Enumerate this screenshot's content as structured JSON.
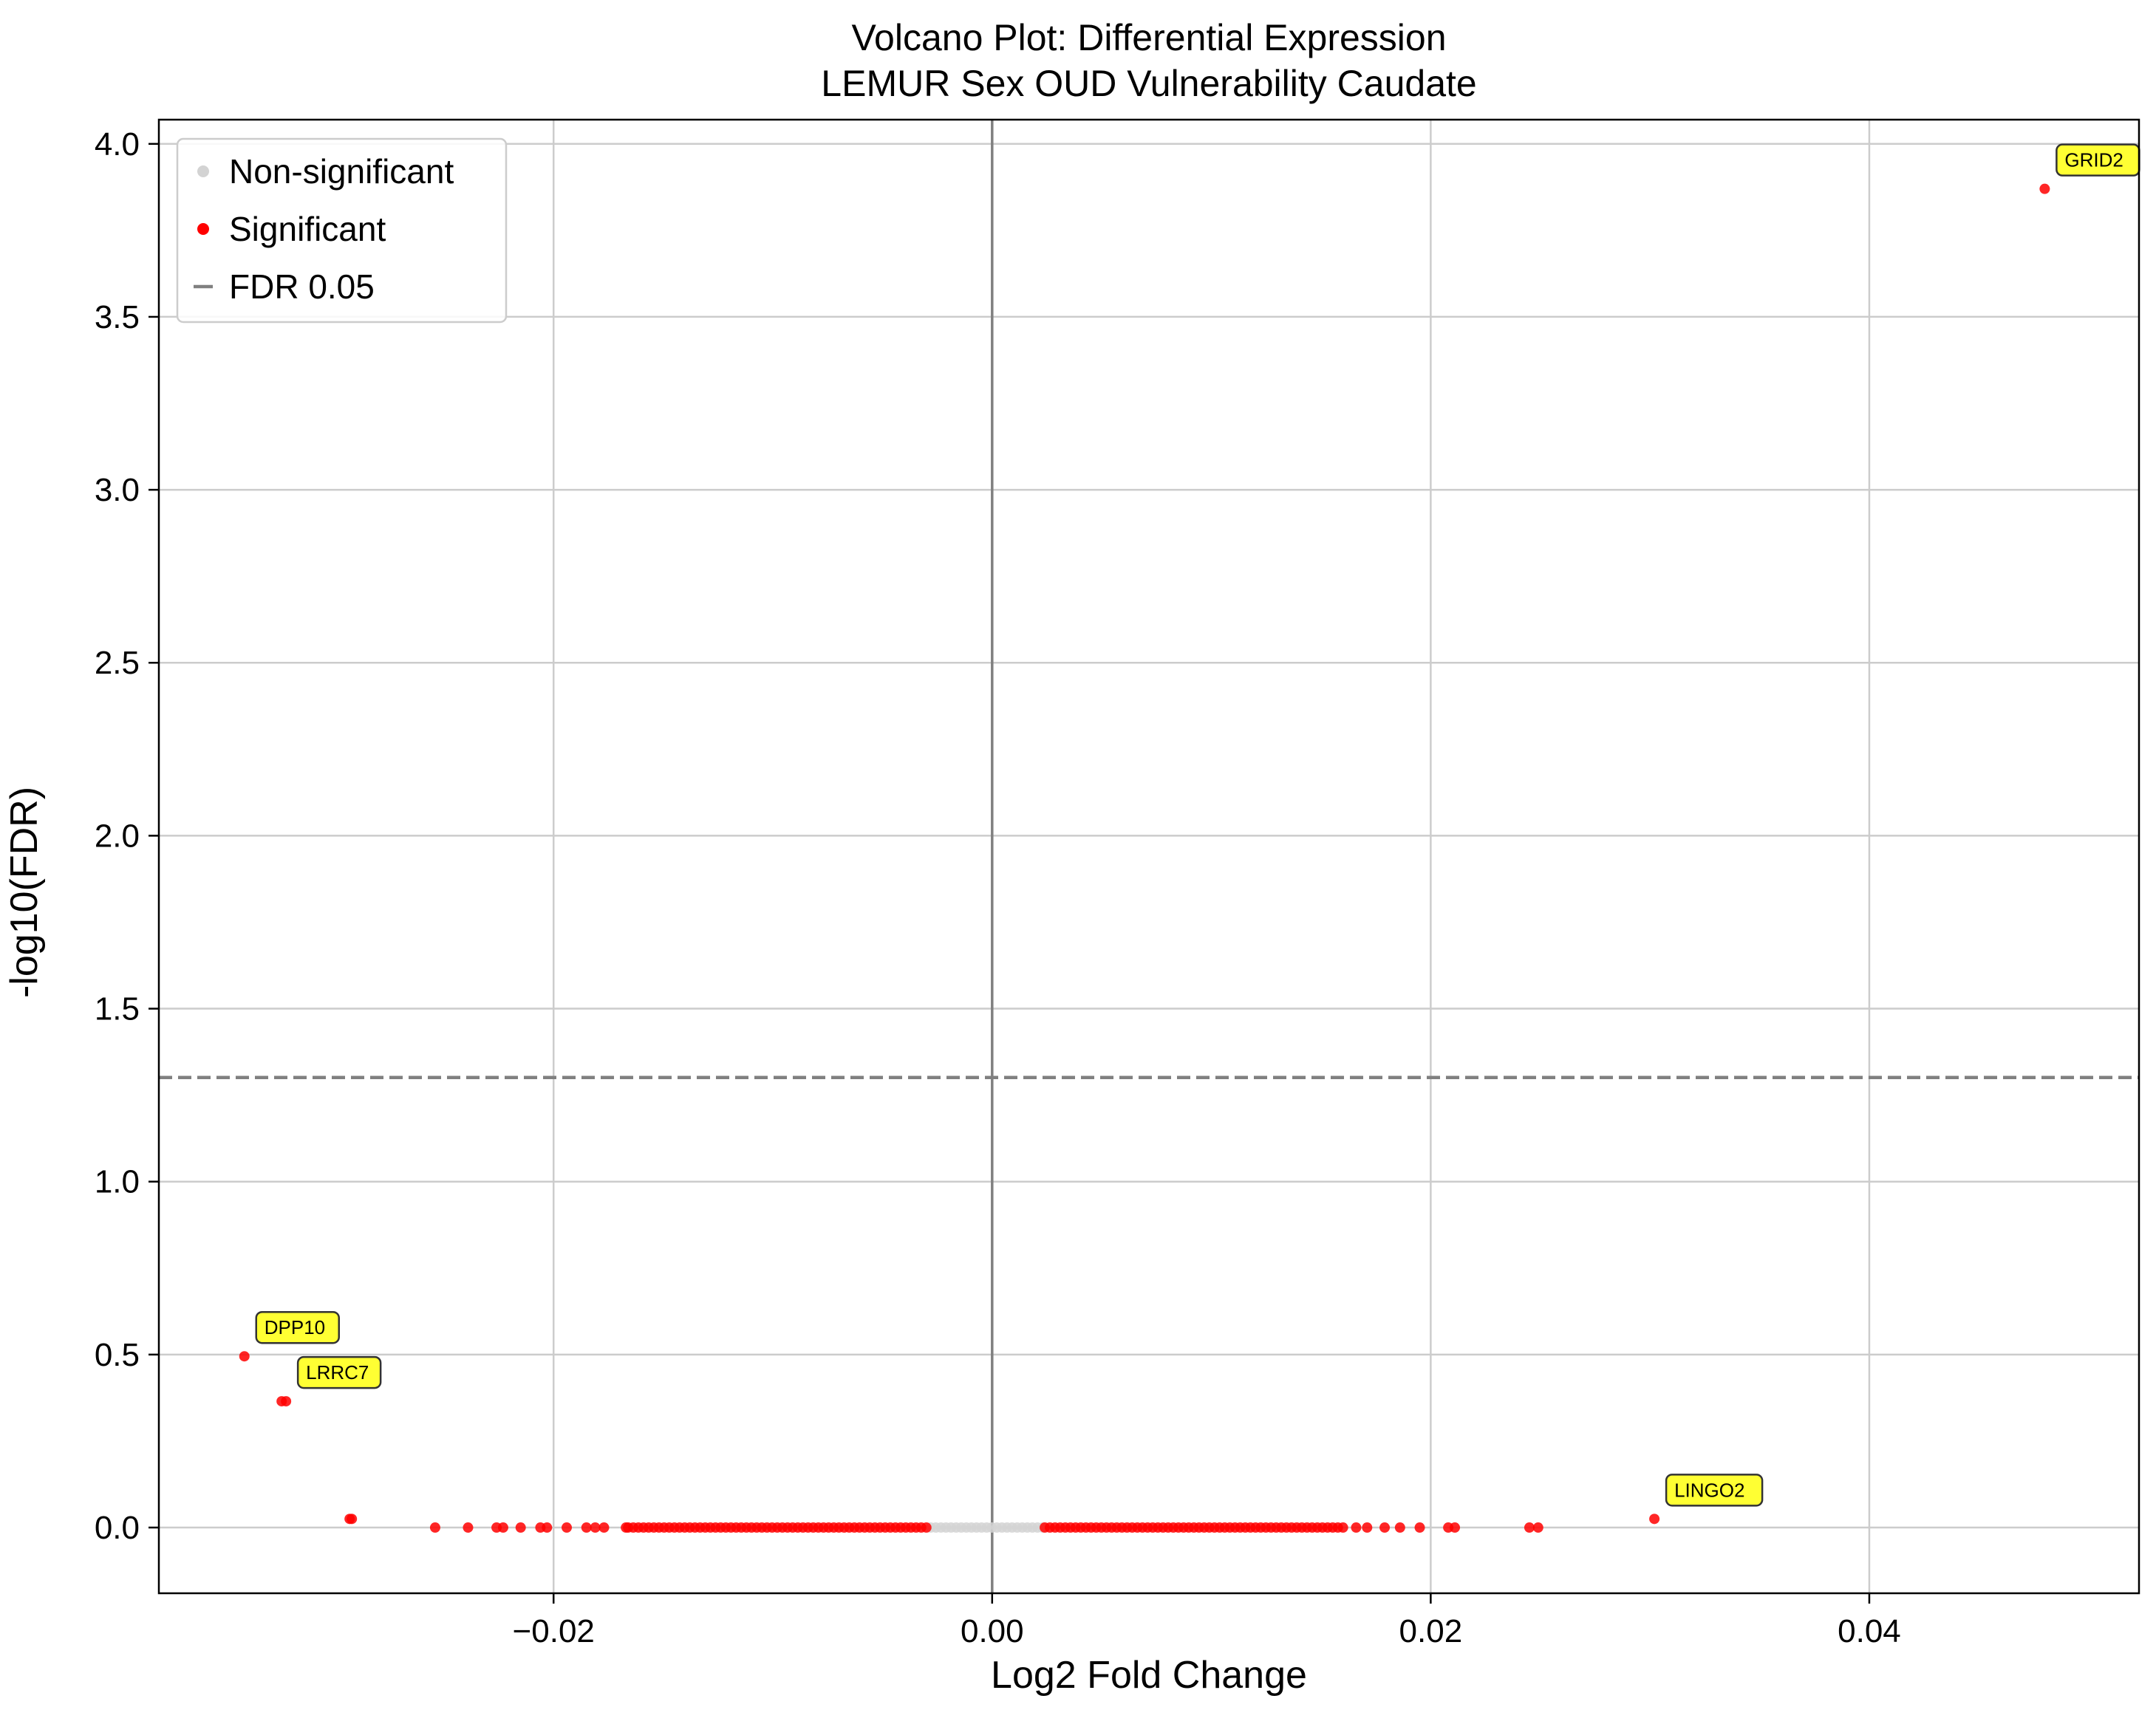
{
  "chart_data": {
    "type": "scatter",
    "title": "Volcano Plot: Differential Expression",
    "subtitle": "LEMUR Sex OUD Vulnerability Caudate",
    "xlabel": "Log2 Fold Change",
    "ylabel": "-log10(FDR)",
    "xlim": [
      -0.038,
      0.0523
    ],
    "ylim": [
      -0.19,
      4.07
    ],
    "x_ticks": [
      -0.02,
      0.0,
      0.02,
      0.04
    ],
    "x_tick_labels": [
      "−0.02",
      "0.00",
      "0.02",
      "0.04"
    ],
    "y_ticks": [
      0.0,
      0.5,
      1.0,
      1.5,
      2.0,
      2.5,
      3.0,
      3.5,
      4.0
    ],
    "y_tick_labels": [
      "0.0",
      "0.5",
      "1.0",
      "1.5",
      "2.0",
      "2.5",
      "3.0",
      "3.5",
      "4.0"
    ],
    "grid": true,
    "legend_position": "top-left",
    "threshold_line": {
      "y": 1.301,
      "label": "FDR 0.05",
      "color": "#808080"
    },
    "zero_line": {
      "x": 0.0,
      "color": "#808080"
    },
    "series": [
      {
        "name": "Non-significant",
        "color": "#d3d3d3",
        "y_constant": 0.0,
        "x_ranges": [
          [
            -0.0028,
            0.0023
          ]
        ]
      },
      {
        "name": "Significant",
        "color": "#ff0000",
        "points": [
          {
            "x": 0.048,
            "y": 3.87
          },
          {
            "x": -0.0341,
            "y": 0.495
          },
          {
            "x": -0.0324,
            "y": 0.365
          },
          {
            "x": -0.0322,
            "y": 0.365
          },
          {
            "x": -0.0293,
            "y": 0.025
          },
          {
            "x": -0.0292,
            "y": 0.025
          },
          {
            "x": 0.0302,
            "y": 0.025
          },
          {
            "x": -0.0254,
            "y": 0.0
          },
          {
            "x": -0.0239,
            "y": 0.0
          },
          {
            "x": -0.0226,
            "y": 0.0
          },
          {
            "x": -0.0223,
            "y": 0.0
          },
          {
            "x": -0.0215,
            "y": 0.0
          },
          {
            "x": -0.0206,
            "y": 0.0
          },
          {
            "x": -0.0203,
            "y": 0.0
          },
          {
            "x": -0.0194,
            "y": 0.0
          },
          {
            "x": -0.0185,
            "y": 0.0
          },
          {
            "x": -0.0181,
            "y": 0.0
          },
          {
            "x": -0.0177,
            "y": 0.0
          },
          {
            "x": -0.0167,
            "y": 0.0
          },
          {
            "x": 0.0166,
            "y": 0.0
          },
          {
            "x": 0.0171,
            "y": 0.0
          },
          {
            "x": 0.0179,
            "y": 0.0
          },
          {
            "x": 0.0186,
            "y": 0.0
          },
          {
            "x": 0.0195,
            "y": 0.0
          },
          {
            "x": 0.0208,
            "y": 0.0
          },
          {
            "x": 0.0211,
            "y": 0.0
          },
          {
            "x": 0.0245,
            "y": 0.0
          },
          {
            "x": 0.0249,
            "y": 0.0
          }
        ],
        "x_ranges_at_zero": [
          [
            -0.0166,
            -0.003
          ],
          [
            0.0024,
            0.016
          ]
        ]
      }
    ],
    "legend": [
      {
        "label": "Non-significant",
        "marker": "dot",
        "color": "#d3d3d3"
      },
      {
        "label": "Significant",
        "marker": "dot",
        "color": "#ff0000"
      },
      {
        "label": "FDR 0.05",
        "marker": "dash",
        "color": "#808080"
      }
    ],
    "annotations": [
      {
        "label": "GRID2",
        "x": 0.048,
        "y": 3.87,
        "box_color": "#ffff33"
      },
      {
        "label": "DPP10",
        "x": -0.0341,
        "y": 0.495,
        "box_color": "#ffff33"
      },
      {
        "label": "LRRC7",
        "x": -0.0322,
        "y": 0.365,
        "box_color": "#ffff33"
      },
      {
        "label": "LINGO2",
        "x": 0.0302,
        "y": 0.025,
        "box_color": "#ffff33"
      }
    ]
  }
}
